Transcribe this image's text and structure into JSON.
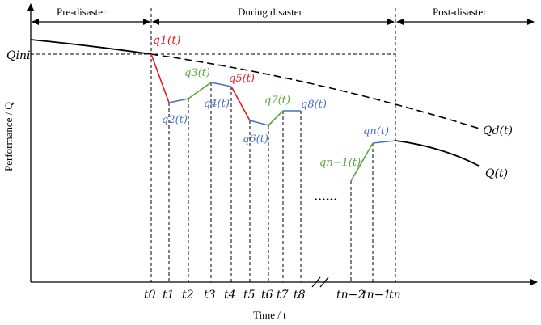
{
  "phases": {
    "pre": "Pre-disaster",
    "during": "During disaster",
    "post": "Post-disaster"
  },
  "axes": {
    "y_title": "Performance / Q",
    "x_title": "Time / t"
  },
  "reference": {
    "q_ini": "Qini"
  },
  "curves": {
    "qd": "Qd(t)",
    "q": "Q(t)"
  },
  "segment_labels": {
    "q1": "q1(t)",
    "q2": "q2(t)",
    "q3": "q3(t)",
    "q4": "q4(t)",
    "q5": "q5(t)",
    "q6": "q6(t)",
    "q7": "q7(t)",
    "q8": "q8(t)",
    "qn1": "qn−1(t)",
    "qn": "qn(t)"
  },
  "ellipsis": "......",
  "time_ticks": [
    "t0",
    "t1",
    "t2",
    "t3",
    "t4",
    "t5",
    "t6",
    "t7",
    "t8",
    "tn−2",
    "tn−1",
    "tn"
  ],
  "colors": {
    "decline": "#e8191c",
    "recovery": "#5aa63c",
    "steady": "#4472c4"
  }
}
